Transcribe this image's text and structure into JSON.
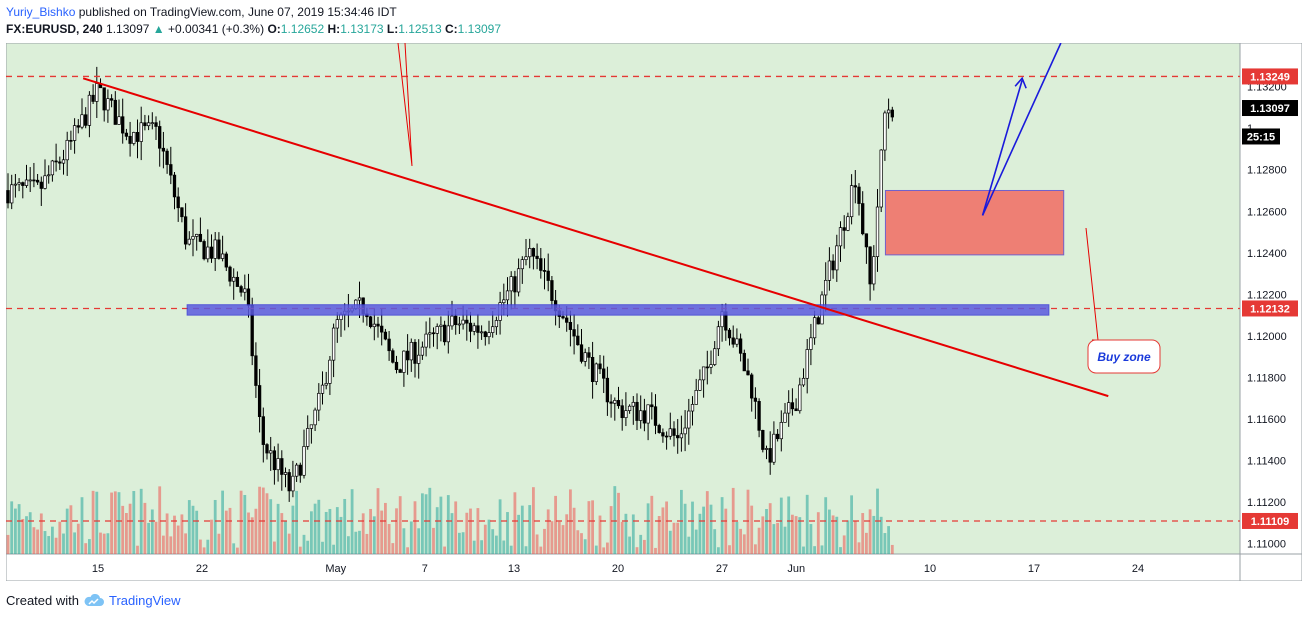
{
  "header": {
    "author": "Yuriy_Bishko",
    "published": "published on TradingView.com, June 07, 2019 15:34:46 IDT",
    "symbol": "FX:EURUSD, 240",
    "last": "1.13097",
    "change": "+0.00341 (+0.3%)",
    "open_label": "O:",
    "open": "1.12652",
    "high_label": "H:",
    "high": "1.13173",
    "low_label": "L:",
    "low": "1.12513",
    "close_label": "C:",
    "close": "1.13097"
  },
  "footer": {
    "created_with": "Created with",
    "brand": "TradingView",
    "logo_icon": "tradingview-cloud-icon"
  },
  "colors": {
    "plot_bg": "#dcefd9",
    "bull": "#26a69a",
    "bear": "#ef5350",
    "level_line": "#e53935",
    "trendline": "#e60000",
    "buy_zone_fill": "#ef7a6f",
    "buy_zone_border": "#6a5acd",
    "blue_zone_fill": "#5b5be0",
    "arrow": "#1a1adb"
  },
  "price_axis": {
    "ticks": [
      "1.13200",
      "1.12800",
      "1.12600",
      "1.12400",
      "1.12200",
      "1.12000",
      "1.11800",
      "1.11600",
      "1.11400",
      "1.11200",
      "1.11000"
    ],
    "tick_values": [
      1.132,
      1.128,
      1.126,
      1.124,
      1.122,
      1.12,
      1.118,
      1.116,
      1.114,
      1.112,
      1.11
    ],
    "partial_tick": "1",
    "partial_tick_value": 1.13,
    "labels": [
      {
        "text": "1.13249",
        "value": 1.13249,
        "style": "red"
      },
      {
        "text": "1.13097",
        "value": 1.13097,
        "style": "black"
      },
      {
        "text": "25:15",
        "value": 1.1296,
        "style": "black"
      },
      {
        "text": "1.12132",
        "value": 1.12132,
        "style": "red"
      },
      {
        "text": "1.11109",
        "value": 1.11109,
        "style": "red"
      }
    ]
  },
  "time_axis": {
    "labels": [
      "15",
      "22",
      "May",
      "7",
      "13",
      "20",
      "27",
      "Jun",
      "10",
      "17",
      "24"
    ]
  },
  "chart_data": {
    "type": "candlestick",
    "symbol": "FX:EURUSD",
    "interval": "240",
    "ylim": [
      1.1095,
      1.1341
    ],
    "horizontal_levels": [
      1.13249,
      1.12132,
      1.11109
    ],
    "annotations": [
      {
        "kind": "trendline",
        "from": [
          "Apr 14",
          1.1324
        ],
        "to": [
          "Jun 22",
          1.1171
        ]
      },
      {
        "kind": "rectangle",
        "label": "Buy zone",
        "price_range": [
          1.1239,
          1.127
        ],
        "time_range": [
          "Jun 7",
          "Jun 19"
        ]
      },
      {
        "kind": "rectangle",
        "price_range": [
          1.121,
          1.1215
        ],
        "time_range": [
          "Apr 21",
          "Jun 18"
        ]
      },
      {
        "kind": "arrow",
        "from": [
          "Jun 13",
          1.1258
        ],
        "to": [
          "Jun 16",
          1.1325
        ]
      },
      {
        "kind": "arrow",
        "from": [
          "Jun 13",
          1.1258
        ],
        "to": [
          "Jun 18",
          1.1344
        ]
      }
    ],
    "price_path": [
      {
        "t": "Apr 11",
        "close": 1.127
      },
      {
        "t": "Apr 13",
        "close": 1.129
      },
      {
        "t": "Apr 15",
        "close": 1.1318
      },
      {
        "t": "Apr 17",
        "close": 1.1298
      },
      {
        "t": "Apr 19",
        "close": 1.1298
      },
      {
        "t": "Apr 21",
        "close": 1.1245
      },
      {
        "t": "Apr 23",
        "close": 1.124
      },
      {
        "t": "Apr 25",
        "close": 1.1218
      },
      {
        "t": "Apr 26",
        "close": 1.115
      },
      {
        "t": "Apr 28",
        "close": 1.1125
      },
      {
        "t": "Apr 30",
        "close": 1.117
      },
      {
        "t": "May 1",
        "close": 1.1205
      },
      {
        "t": "May 3",
        "close": 1.1215
      },
      {
        "t": "May 5",
        "close": 1.1185
      },
      {
        "t": "May 7",
        "close": 1.1196
      },
      {
        "t": "May 9",
        "close": 1.1206
      },
      {
        "t": "May 11",
        "close": 1.1203
      },
      {
        "t": "May 13",
        "close": 1.1225
      },
      {
        "t": "May 14",
        "close": 1.124
      },
      {
        "t": "May 16",
        "close": 1.1215
      },
      {
        "t": "May 18",
        "close": 1.1187
      },
      {
        "t": "May 20",
        "close": 1.1165
      },
      {
        "t": "May 22",
        "close": 1.1163
      },
      {
        "t": "May 24",
        "close": 1.115
      },
      {
        "t": "May 26",
        "close": 1.1184
      },
      {
        "t": "May 27",
        "close": 1.1213
      },
      {
        "t": "May 29",
        "close": 1.1175
      },
      {
        "t": "May 30",
        "close": 1.114
      },
      {
        "t": "Jun 1",
        "close": 1.117
      },
      {
        "t": "Jun 3",
        "close": 1.1225
      },
      {
        "t": "Jun 4",
        "close": 1.125
      },
      {
        "t": "Jun 5",
        "close": 1.1278
      },
      {
        "t": "Jun 6",
        "close": 1.1222
      },
      {
        "t": "Jun 7",
        "close": 1.131
      }
    ],
    "volume_visible": true
  },
  "annotation_text": {
    "buy_zone": "Buy zone"
  }
}
